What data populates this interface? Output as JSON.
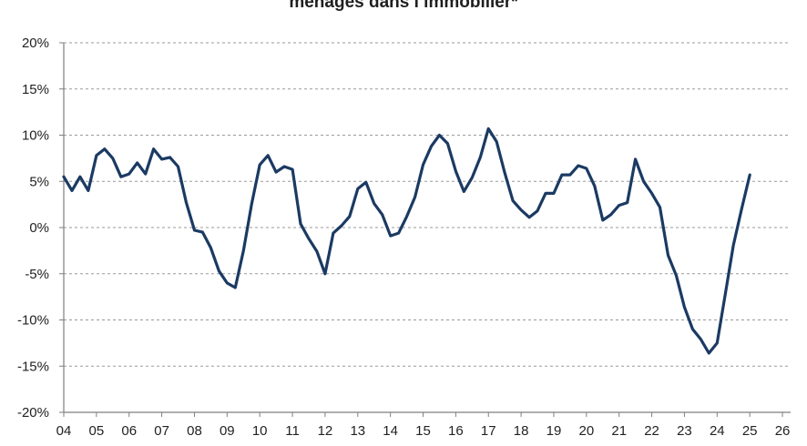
{
  "chart_data": {
    "type": "line",
    "title": "ménages dans l’immobilier*",
    "xlabel": "",
    "ylabel": "",
    "ylim": [
      -20,
      20
    ],
    "yticks": [
      20,
      15,
      10,
      5,
      0,
      -5,
      -10,
      -15,
      -20
    ],
    "ytick_labels": [
      "20%",
      "15%",
      "10%",
      "5%",
      "0%",
      "-5%",
      "-10%",
      "-15%",
      "-20%"
    ],
    "xlim": [
      2004,
      2026.25
    ],
    "xtick_labels": [
      "04",
      "05",
      "06",
      "07",
      "08",
      "09",
      "10",
      "11",
      "12",
      "13",
      "14",
      "15",
      "16",
      "17",
      "18",
      "19",
      "20",
      "21",
      "22",
      "23",
      "24",
      "25",
      "26"
    ],
    "grid": true,
    "color": "#1b3a63",
    "series": [
      {
        "x": [
          2004.0,
          2004.25,
          2004.5,
          2004.75,
          2005.0,
          2005.25,
          2005.5,
          2005.75,
          2006.0,
          2006.25,
          2006.5,
          2006.75,
          2007.0,
          2007.25,
          2007.5,
          2007.75,
          2008.0,
          2008.25,
          2008.5,
          2008.75,
          2009.0,
          2009.25,
          2009.5,
          2009.75,
          2010.0,
          2010.25,
          2010.5,
          2010.75,
          2011.0,
          2011.25,
          2011.5,
          2011.75,
          2012.0,
          2012.25,
          2012.5,
          2012.75,
          2013.0,
          2013.25,
          2013.5,
          2013.75,
          2014.0,
          2014.25,
          2014.5,
          2014.75,
          2015.0,
          2015.25,
          2015.5,
          2015.75,
          2016.0,
          2016.25,
          2016.5,
          2016.75,
          2017.0,
          2017.25,
          2017.5,
          2017.75,
          2018.0,
          2018.25,
          2018.5,
          2018.75,
          2019.0,
          2019.25,
          2019.5,
          2019.75,
          2020.0,
          2020.25,
          2020.5,
          2020.75,
          2021.0,
          2021.25,
          2021.5,
          2021.75,
          2022.0,
          2022.25,
          2022.5,
          2022.75,
          2023.0,
          2023.25,
          2023.5,
          2023.75,
          2024.0,
          2024.25,
          2024.5,
          2024.75,
          2025.0
        ],
        "y": [
          5.5,
          4.0,
          5.5,
          4.0,
          7.8,
          8.5,
          7.5,
          5.5,
          5.8,
          7.0,
          5.8,
          8.5,
          7.4,
          7.6,
          6.6,
          2.7,
          -0.3,
          -0.5,
          -2.2,
          -4.7,
          -6.0,
          -6.5,
          -2.5,
          2.5,
          6.8,
          7.8,
          6.0,
          6.6,
          6.3,
          0.4,
          -1.2,
          -2.6,
          -5.0,
          -0.6,
          0.2,
          1.2,
          4.2,
          4.9,
          2.6,
          1.4,
          -0.9,
          -0.6,
          1.2,
          3.3,
          6.8,
          8.8,
          10.0,
          9.1,
          6.1,
          3.9,
          5.4,
          7.6,
          10.7,
          9.3,
          5.9,
          2.9,
          1.9,
          1.1,
          1.8,
          3.7,
          3.7,
          5.7,
          5.7,
          6.7,
          6.4,
          4.5,
          0.8,
          1.4,
          2.4,
          2.7,
          7.4,
          5.0,
          3.7,
          2.2,
          -3.0,
          -5.2,
          -8.6,
          -11.0,
          -12.1,
          -13.6,
          -12.5,
          -7.2,
          -1.9,
          2.0,
          5.7
        ]
      }
    ]
  }
}
